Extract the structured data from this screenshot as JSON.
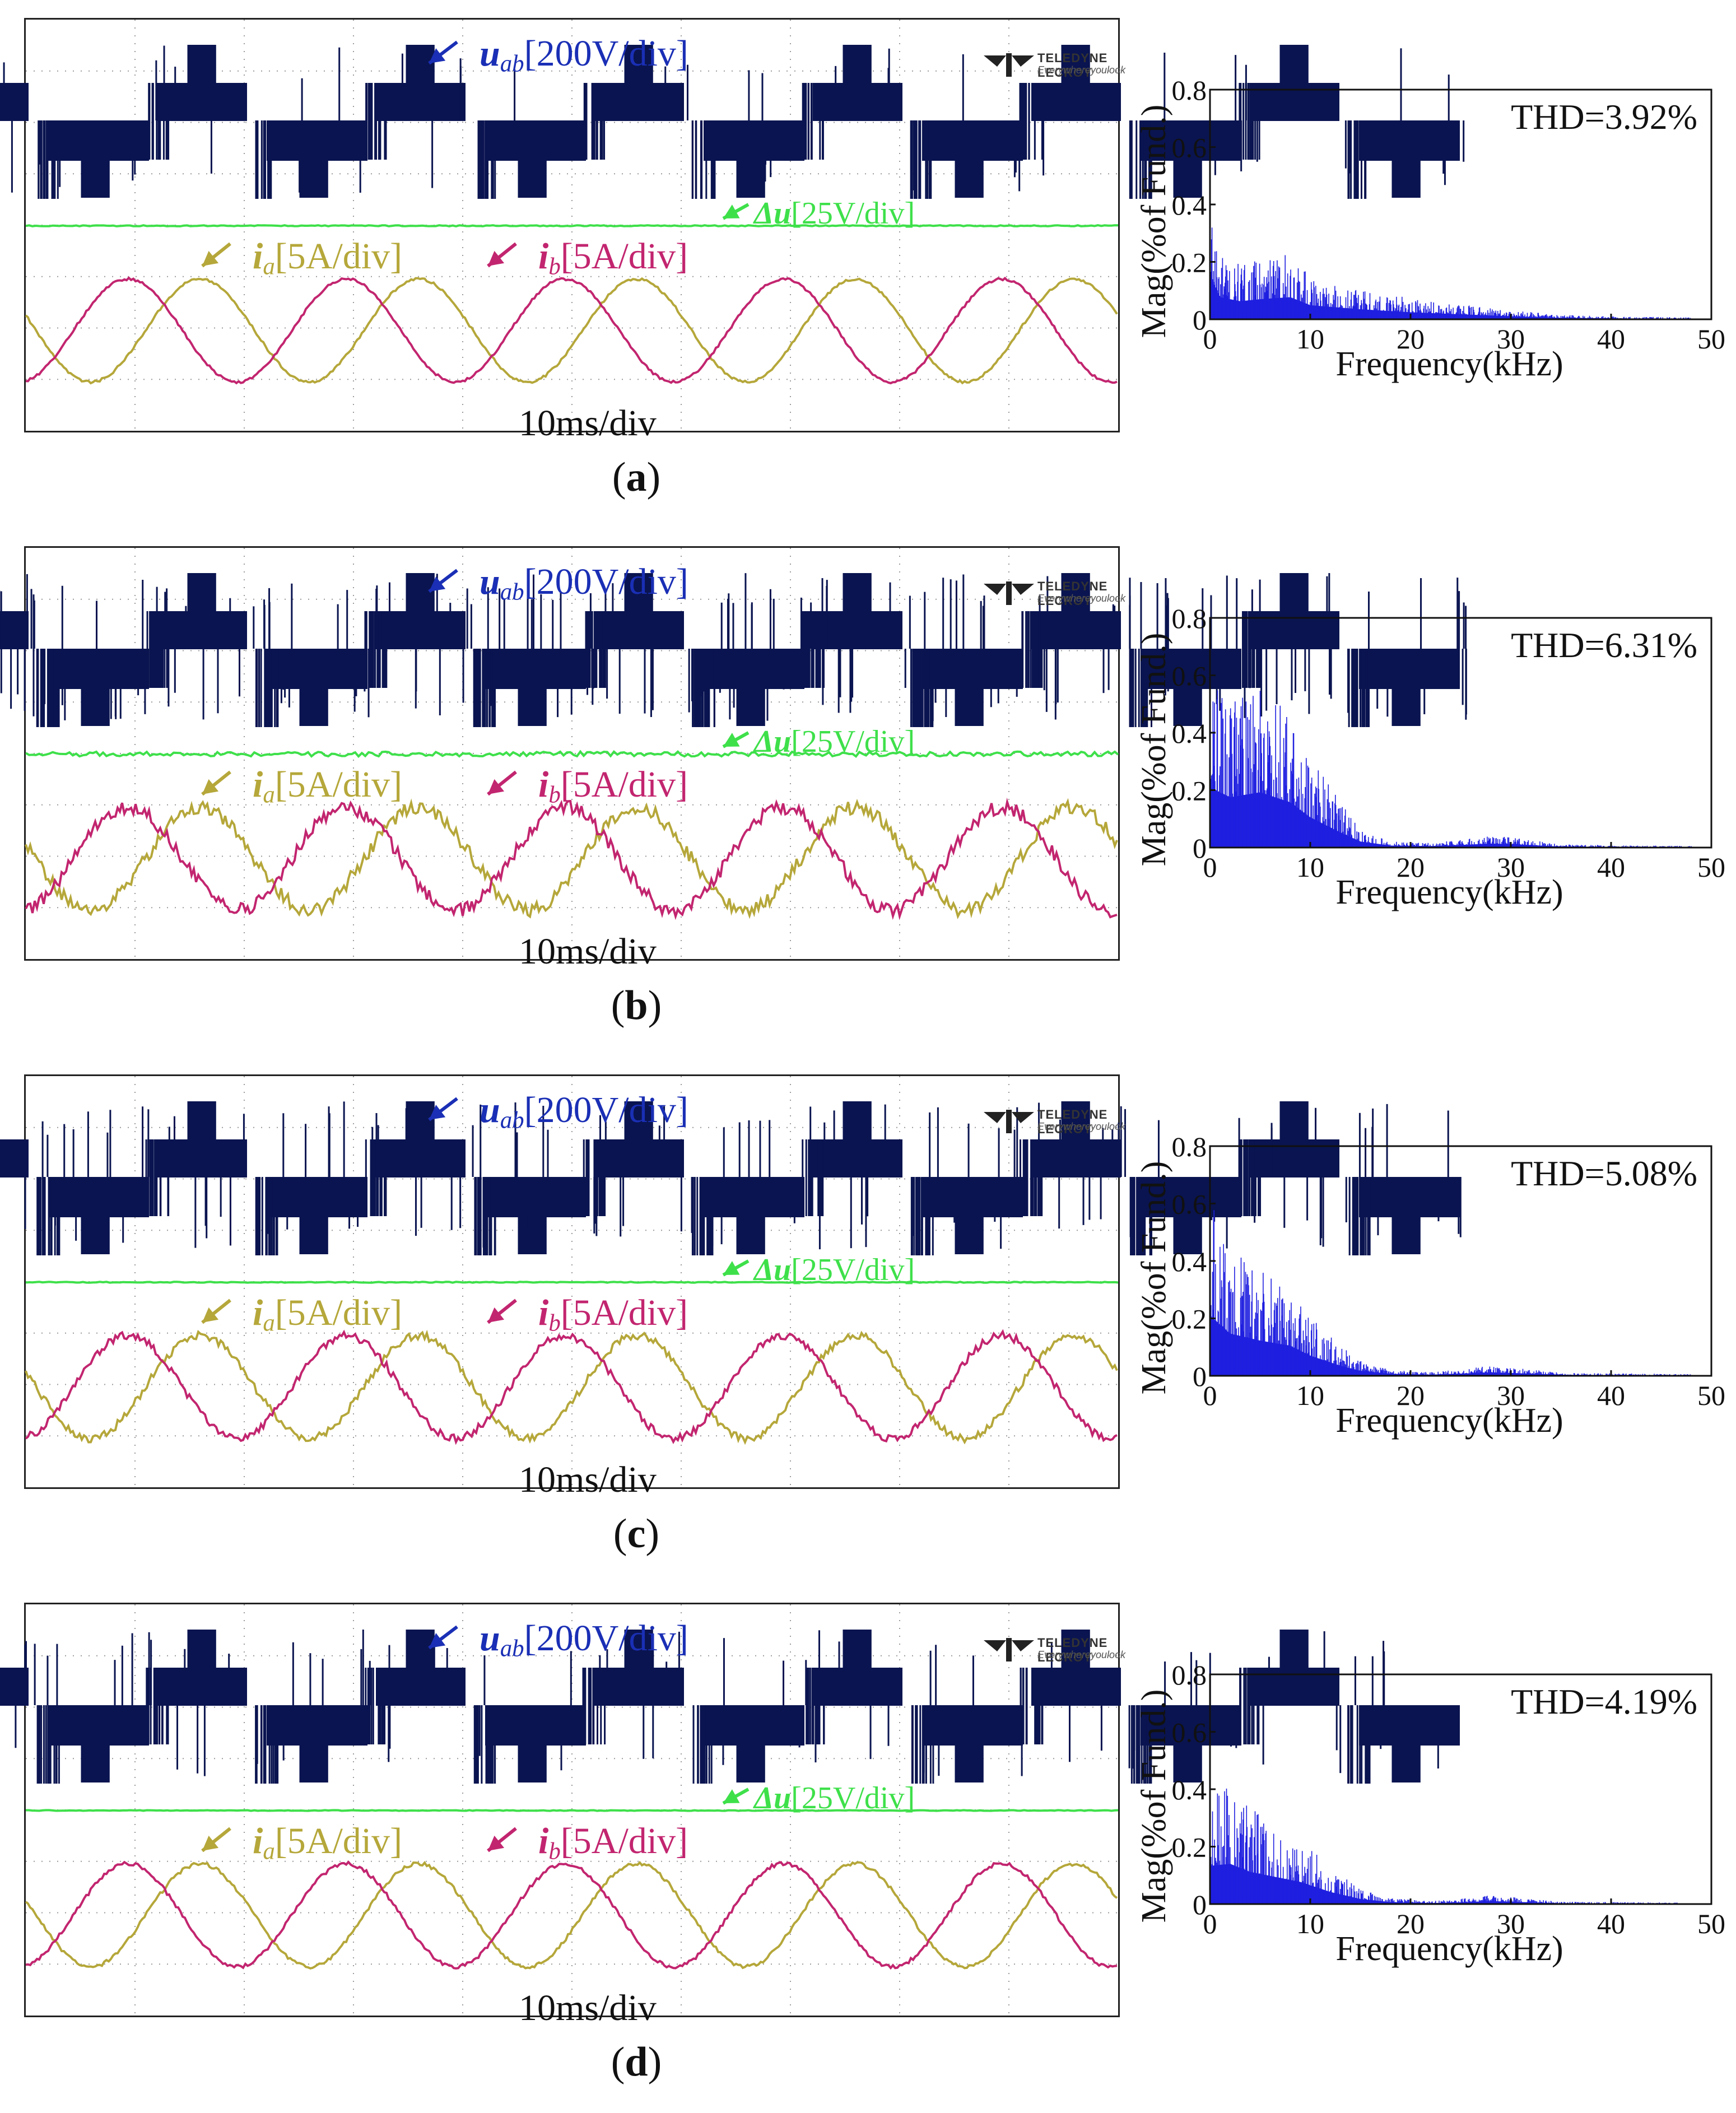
{
  "chart_data": [
    {
      "id": "a",
      "type": "line",
      "caption": "a",
      "scope": {
        "time_label": "10ms/div",
        "brand": {
          "name": "TELEDYNE LECROY",
          "tagline": "Everywhereyoulook"
        },
        "channels": {
          "uab": {
            "symbol": "u",
            "subscript": "ab",
            "scale": "[200V/div]",
            "color": "#0a1450"
          },
          "du": {
            "symbol": "Δu",
            "scale": "[25V/div]",
            "color": "#3ee04a"
          },
          "ia": {
            "symbol": "i",
            "subscript": "a",
            "scale": "[5A/div]",
            "color": "#b5a73a"
          },
          "ib": {
            "symbol": "i",
            "subscript": "b",
            "scale": "[5A/div]",
            "color": "#c2256f"
          }
        },
        "spike_density": 0.15,
        "current_noise": 0.008,
        "du_noise": 0.3
      },
      "spectrum": {
        "type": "area",
        "thd_label": "THD=3.92%",
        "xlabel": "Frequency(kHz)",
        "ylabel": "Mag(%of Fund.)",
        "xlim": [
          0,
          50
        ],
        "ylim": [
          0,
          0.8
        ],
        "xticks": [
          0,
          10,
          20,
          30,
          40,
          50
        ],
        "yticks": [
          0,
          0.2,
          0.4,
          0.6,
          0.8
        ],
        "envelope_kHz": [
          0,
          1,
          3,
          5,
          8,
          10,
          15,
          20,
          25,
          30,
          35,
          40,
          50
        ],
        "envelope_mag": [
          0.45,
          0.22,
          0.18,
          0.2,
          0.22,
          0.14,
          0.1,
          0.07,
          0.05,
          0.03,
          0.015,
          0.01,
          0.005
        ]
      }
    },
    {
      "id": "b",
      "type": "line",
      "caption": "b",
      "scope": {
        "time_label": "10ms/div",
        "brand": {
          "name": "TELEDYNE LECROY",
          "tagline": "Everywhereyoulook"
        },
        "channels": {
          "uab": {
            "symbol": "u",
            "subscript": "ab",
            "scale": "[200V/div]",
            "color": "#0a1450"
          },
          "du": {
            "symbol": "Δu",
            "scale": "[25V/div]",
            "color": "#3ee04a"
          },
          "ia": {
            "symbol": "i",
            "subscript": "a",
            "scale": "[5A/div]",
            "color": "#b5a73a"
          },
          "ib": {
            "symbol": "i",
            "subscript": "b",
            "scale": "[5A/div]",
            "color": "#c2256f"
          }
        },
        "spike_density": 0.55,
        "current_noise": 0.045,
        "du_noise": 1.4
      },
      "spectrum": {
        "type": "area",
        "thd_label": "THD=6.31%",
        "xlabel": "Frequency(kHz)",
        "ylabel": "Mag(%of Fund.)",
        "xlim": [
          0,
          50
        ],
        "ylim": [
          0,
          0.8
        ],
        "xticks": [
          0,
          10,
          20,
          30,
          40,
          50
        ],
        "yticks": [
          0,
          0.2,
          0.4,
          0.6,
          0.8
        ],
        "envelope_kHz": [
          0,
          2,
          5,
          8,
          10,
          13,
          15,
          18,
          22,
          26,
          28,
          31,
          35,
          50
        ],
        "envelope_mag": [
          0.6,
          0.5,
          0.55,
          0.45,
          0.3,
          0.15,
          0.06,
          0.02,
          0.015,
          0.03,
          0.04,
          0.03,
          0.01,
          0.005
        ]
      }
    },
    {
      "id": "c",
      "type": "line",
      "caption": "c",
      "scope": {
        "time_label": "10ms/div",
        "brand": {
          "name": "TELEDYNE LECROY",
          "tagline": "Everywhereyoulook"
        },
        "channels": {
          "uab": {
            "symbol": "u",
            "subscript": "ab",
            "scale": "[200V/div]",
            "color": "#0a1450"
          },
          "du": {
            "symbol": "Δu",
            "scale": "[25V/div]",
            "color": "#3ee04a"
          },
          "ia": {
            "symbol": "i",
            "subscript": "a",
            "scale": "[5A/div]",
            "color": "#b5a73a"
          },
          "ib": {
            "symbol": "i",
            "subscript": "b",
            "scale": "[5A/div]",
            "color": "#c2256f"
          }
        },
        "spike_density": 0.35,
        "current_noise": 0.025,
        "du_noise": 0.25
      },
      "spectrum": {
        "type": "area",
        "thd_label": "THD=5.08%",
        "xlabel": "Frequency(kHz)",
        "ylabel": "Mag(%of Fund.)",
        "xlim": [
          0,
          50
        ],
        "ylim": [
          0,
          0.8
        ],
        "xticks": [
          0,
          10,
          20,
          30,
          40,
          50
        ],
        "yticks": [
          0,
          0.2,
          0.4,
          0.6,
          0.8
        ],
        "envelope_kHz": [
          0,
          2,
          5,
          8,
          10,
          13,
          15,
          18,
          22,
          26,
          28,
          31,
          35,
          50
        ],
        "envelope_mag": [
          0.6,
          0.42,
          0.35,
          0.3,
          0.2,
          0.1,
          0.05,
          0.02,
          0.012,
          0.025,
          0.035,
          0.025,
          0.01,
          0.005
        ]
      }
    },
    {
      "id": "d",
      "type": "line",
      "caption": "d",
      "scope": {
        "time_label": "10ms/div",
        "brand": {
          "name": "TELEDYNE LECROY",
          "tagline": "Everywhereyoulook"
        },
        "channels": {
          "uab": {
            "symbol": "u",
            "subscript": "ab",
            "scale": "[200V/div]",
            "color": "#0a1450"
          },
          "du": {
            "symbol": "Δu",
            "scale": "[25V/div]",
            "color": "#3ee04a"
          },
          "ia": {
            "symbol": "i",
            "subscript": "a",
            "scale": "[5A/div]",
            "color": "#b5a73a"
          },
          "ib": {
            "symbol": "i",
            "subscript": "b",
            "scale": "[5A/div]",
            "color": "#c2256f"
          }
        },
        "spike_density": 0.22,
        "current_noise": 0.012,
        "du_noise": 0.2
      },
      "spectrum": {
        "type": "area",
        "thd_label": "THD=4.19%",
        "xlabel": "Frequency(kHz)",
        "ylabel": "Mag(%of Fund.)",
        "xlim": [
          0,
          50
        ],
        "ylim": [
          0,
          0.8
        ],
        "xticks": [
          0,
          10,
          20,
          30,
          40,
          50
        ],
        "yticks": [
          0,
          0.2,
          0.4,
          0.6,
          0.8
        ],
        "envelope_kHz": [
          0,
          2,
          4,
          6,
          9,
          12,
          15,
          18,
          22,
          26,
          28,
          31,
          35,
          50
        ],
        "envelope_mag": [
          0.38,
          0.4,
          0.32,
          0.28,
          0.22,
          0.12,
          0.05,
          0.02,
          0.01,
          0.02,
          0.03,
          0.02,
          0.008,
          0.004
        ]
      }
    }
  ]
}
